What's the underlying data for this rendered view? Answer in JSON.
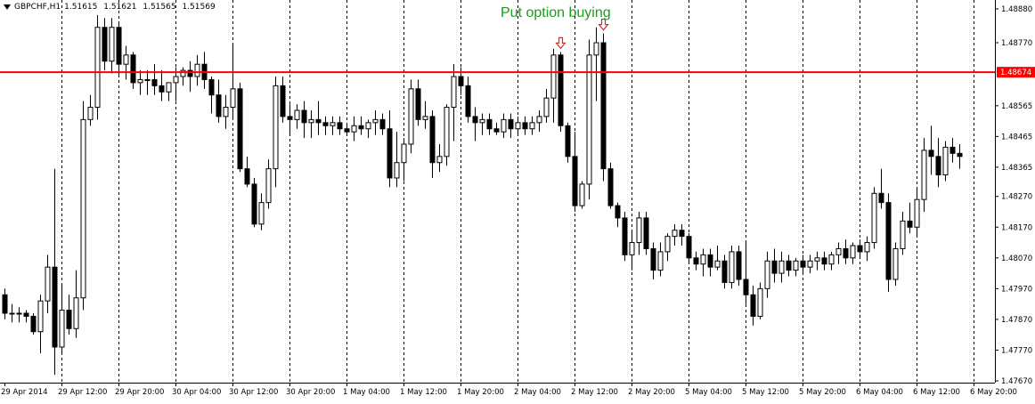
{
  "symbol": "GBPCHF,H1",
  "ohlc": [
    "1.51615",
    "1.51621",
    "1.51565",
    "1.51569"
  ],
  "annotation": "Put option buying",
  "colors": {
    "background": "#ffffff",
    "bull_body": "#ffffff",
    "bear_body": "#000000",
    "wick": "#000000",
    "grid": "#000000",
    "level_line": "#ff0000",
    "level_label_bg": "#ff0000",
    "level_label_text": "#ffffff",
    "annotation": "#1f9a1f",
    "arrow": "#d32f2f"
  },
  "chart_data": {
    "type": "candlestick",
    "timeframe": "H1",
    "grid": "vertical dotted lines",
    "ylim": [
      1.4767,
      1.4888
    ],
    "y_ticks": [
      "1.48880",
      "1.48770",
      "1.48565",
      "1.48465",
      "1.48365",
      "1.48270",
      "1.48170",
      "1.48070",
      "1.47970",
      "1.47870",
      "1.47770",
      "1.47670"
    ],
    "x_labels": [
      "29 Apr 2014",
      "29 Apr 12:00",
      "29 Apr 20:00",
      "30 Apr 04:00",
      "30 Apr 12:00",
      "30 Apr 20:00",
      "1 May 04:00",
      "1 May 12:00",
      "1 May 20:00",
      "2 May 04:00",
      "2 May 12:00",
      "2 May 20:00",
      "5 May 04:00",
      "5 May 12:00",
      "5 May 20:00",
      "6 May 04:00",
      "6 May 12:00",
      "6 May 20:00"
    ],
    "label_every_bars": 8,
    "horizontal_level": {
      "value": 1.48674,
      "label": "1.48674"
    },
    "signal_arrows": [
      {
        "bar": 78,
        "marker": "down-arrow"
      },
      {
        "bar": 84,
        "marker": "down-arrow"
      }
    ],
    "candles": [
      [
        1.4795,
        1.4797,
        1.4787,
        1.4789
      ],
      [
        1.4789,
        1.4792,
        1.4786,
        1.4789
      ],
      [
        1.4789,
        1.4791,
        1.4786,
        1.4789
      ],
      [
        1.4789,
        1.479,
        1.4786,
        1.4788
      ],
      [
        1.4788,
        1.4789,
        1.4782,
        1.4783
      ],
      [
        1.4783,
        1.4795,
        1.4776,
        1.4793
      ],
      [
        1.4793,
        1.4808,
        1.4789,
        1.4804
      ],
      [
        1.4804,
        1.4836,
        1.4769,
        1.4778
      ],
      [
        1.4778,
        1.4798,
        1.4776,
        1.479
      ],
      [
        1.479,
        1.4795,
        1.4782,
        1.4784
      ],
      [
        1.4784,
        1.4803,
        1.4781,
        1.4794
      ],
      [
        1.4794,
        1.4858,
        1.479,
        1.4852
      ],
      [
        1.4852,
        1.486,
        1.485,
        1.4856
      ],
      [
        1.4856,
        1.4886,
        1.4852,
        1.4882
      ],
      [
        1.4882,
        1.4885,
        1.4868,
        1.4871
      ],
      [
        1.4871,
        1.4885,
        1.4867,
        1.4882
      ],
      [
        1.4882,
        1.4884,
        1.4866,
        1.487
      ],
      [
        1.487,
        1.4876,
        1.4865,
        1.4873
      ],
      [
        1.4873,
        1.4874,
        1.4862,
        1.4864
      ],
      [
        1.4864,
        1.4868,
        1.486,
        1.4865
      ],
      [
        1.4865,
        1.4868,
        1.486,
        1.4865
      ],
      [
        1.4865,
        1.487,
        1.486,
        1.4863
      ],
      [
        1.4863,
        1.4868,
        1.4858,
        1.4861
      ],
      [
        1.4861,
        1.4864,
        1.4858,
        1.4864
      ],
      [
        1.4864,
        1.4869,
        1.4858,
        1.4866
      ],
      [
        1.4866,
        1.4869,
        1.4863,
        1.4868
      ],
      [
        1.4868,
        1.4871,
        1.4861,
        1.4866
      ],
      [
        1.4866,
        1.4873,
        1.4863,
        1.487
      ],
      [
        1.487,
        1.4874,
        1.4862,
        1.4865
      ],
      [
        1.4865,
        1.4866,
        1.4854,
        1.486
      ],
      [
        1.486,
        1.4865,
        1.4851,
        1.4853
      ],
      [
        1.4853,
        1.486,
        1.4849,
        1.4856
      ],
      [
        1.4856,
        1.4877,
        1.4852,
        1.4862
      ],
      [
        1.4862,
        1.4864,
        1.4835,
        1.4836
      ],
      [
        1.4836,
        1.484,
        1.483,
        1.4831
      ],
      [
        1.4831,
        1.4833,
        1.4817,
        1.4818
      ],
      [
        1.4818,
        1.4828,
        1.4816,
        1.4825
      ],
      [
        1.4825,
        1.4839,
        1.4823,
        1.4836
      ],
      [
        1.4836,
        1.4866,
        1.483,
        1.4863
      ],
      [
        1.4863,
        1.4866,
        1.4851,
        1.4853
      ],
      [
        1.4853,
        1.4857,
        1.4847,
        1.4852
      ],
      [
        1.4852,
        1.4857,
        1.4849,
        1.4855
      ],
      [
        1.4855,
        1.4858,
        1.4846,
        1.4851
      ],
      [
        1.4851,
        1.4855,
        1.4846,
        1.4852
      ],
      [
        1.4852,
        1.4858,
        1.4847,
        1.4851
      ],
      [
        1.4851,
        1.4853,
        1.4847,
        1.485
      ],
      [
        1.485,
        1.4853,
        1.4847,
        1.4851
      ],
      [
        1.4851,
        1.4853,
        1.4847,
        1.4849
      ],
      [
        1.4849,
        1.4851,
        1.4847,
        1.4848
      ],
      [
        1.4848,
        1.4853,
        1.4845,
        1.485
      ],
      [
        1.485,
        1.4853,
        1.4847,
        1.4849
      ],
      [
        1.4849,
        1.4852,
        1.4846,
        1.4851
      ],
      [
        1.4851,
        1.4855,
        1.4847,
        1.4852
      ],
      [
        1.4852,
        1.4854,
        1.4847,
        1.4849
      ],
      [
        1.4849,
        1.4855,
        1.483,
        1.4833
      ],
      [
        1.4833,
        1.4848,
        1.483,
        1.4838
      ],
      [
        1.4838,
        1.4846,
        1.4832,
        1.4844
      ],
      [
        1.4844,
        1.4865,
        1.4841,
        1.4862
      ],
      [
        1.4862,
        1.4865,
        1.485,
        1.4852
      ],
      [
        1.4852,
        1.4858,
        1.4849,
        1.4853
      ],
      [
        1.4853,
        1.4855,
        1.4833,
        1.4838
      ],
      [
        1.4838,
        1.4844,
        1.4835,
        1.484
      ],
      [
        1.484,
        1.4857,
        1.4837,
        1.4856
      ],
      [
        1.4856,
        1.487,
        1.4845,
        1.4866
      ],
      [
        1.4866,
        1.4869,
        1.486,
        1.4863
      ],
      [
        1.4863,
        1.4866,
        1.4851,
        1.4853
      ],
      [
        1.4853,
        1.4856,
        1.4845,
        1.4851
      ],
      [
        1.4851,
        1.4854,
        1.4847,
        1.4852
      ],
      [
        1.4852,
        1.4854,
        1.4847,
        1.4849
      ],
      [
        1.4849,
        1.4851,
        1.4847,
        1.4848
      ],
      [
        1.4848,
        1.4854,
        1.4846,
        1.4852
      ],
      [
        1.4852,
        1.4854,
        1.4846,
        1.4849
      ],
      [
        1.4849,
        1.4853,
        1.4847,
        1.4851
      ],
      [
        1.4851,
        1.4853,
        1.4847,
        1.4849
      ],
      [
        1.4849,
        1.4853,
        1.4847,
        1.4851
      ],
      [
        1.4851,
        1.4855,
        1.4848,
        1.4853
      ],
      [
        1.4853,
        1.4862,
        1.4851,
        1.4859
      ],
      [
        1.4859,
        1.4875,
        1.4851,
        1.4873
      ],
      [
        1.4873,
        1.4874,
        1.4848,
        1.485
      ],
      [
        1.485,
        1.4851,
        1.4838,
        1.484
      ],
      [
        1.484,
        1.4848,
        1.4822,
        1.4824
      ],
      [
        1.4824,
        1.4832,
        1.4823,
        1.4831
      ],
      [
        1.4831,
        1.4878,
        1.4826,
        1.4873
      ],
      [
        1.4873,
        1.4882,
        1.4858,
        1.4877
      ],
      [
        1.4877,
        1.488,
        1.4832,
        1.4836
      ],
      [
        1.4836,
        1.4838,
        1.4823,
        1.4824
      ],
      [
        1.4824,
        1.4825,
        1.4817,
        1.482
      ],
      [
        1.482,
        1.4822,
        1.4806,
        1.4808
      ],
      [
        1.4808,
        1.4816,
        1.4803,
        1.4812
      ],
      [
        1.4812,
        1.4822,
        1.4808,
        1.482
      ],
      [
        1.482,
        1.4822,
        1.4808,
        1.481
      ],
      [
        1.481,
        1.4812,
        1.48,
        1.4803
      ],
      [
        1.4803,
        1.4812,
        1.4801,
        1.4809
      ],
      [
        1.4809,
        1.4815,
        1.4806,
        1.4814
      ],
      [
        1.4814,
        1.4818,
        1.4811,
        1.4816
      ],
      [
        1.4816,
        1.4818,
        1.4811,
        1.4814
      ],
      [
        1.4814,
        1.4815,
        1.4805,
        1.4807
      ],
      [
        1.4807,
        1.4809,
        1.4803,
        1.4805
      ],
      [
        1.4805,
        1.481,
        1.4801,
        1.4808
      ],
      [
        1.4808,
        1.481,
        1.4801,
        1.4804
      ],
      [
        1.4804,
        1.4811,
        1.4803,
        1.4806
      ],
      [
        1.4806,
        1.4808,
        1.4797,
        1.4799
      ],
      [
        1.4799,
        1.4811,
        1.4797,
        1.4809
      ],
      [
        1.4809,
        1.4811,
        1.4798,
        1.48
      ],
      [
        1.48,
        1.4812,
        1.4792,
        1.4795
      ],
      [
        1.4795,
        1.4798,
        1.4785,
        1.4788
      ],
      [
        1.4788,
        1.4799,
        1.4787,
        1.4797
      ],
      [
        1.4797,
        1.4809,
        1.4794,
        1.4806
      ],
      [
        1.4806,
        1.481,
        1.4799,
        1.4802
      ],
      [
        1.4802,
        1.4809,
        1.4799,
        1.4806
      ],
      [
        1.4806,
        1.4808,
        1.4801,
        1.4803
      ],
      [
        1.4803,
        1.4807,
        1.4801,
        1.4806
      ],
      [
        1.4806,
        1.4808,
        1.4802,
        1.4804
      ],
      [
        1.4804,
        1.4808,
        1.4802,
        1.4806
      ],
      [
        1.4806,
        1.4809,
        1.4803,
        1.4807
      ],
      [
        1.4807,
        1.4809,
        1.4803,
        1.4805
      ],
      [
        1.4805,
        1.4809,
        1.4803,
        1.4808
      ],
      [
        1.4808,
        1.4812,
        1.4805,
        1.481
      ],
      [
        1.481,
        1.4813,
        1.4805,
        1.4807
      ],
      [
        1.4807,
        1.4812,
        1.4805,
        1.4811
      ],
      [
        1.4811,
        1.4813,
        1.4807,
        1.4809
      ],
      [
        1.4809,
        1.4814,
        1.4806,
        1.4812
      ],
      [
        1.4812,
        1.483,
        1.481,
        1.4828
      ],
      [
        1.4828,
        1.4836,
        1.4823,
        1.4825
      ],
      [
        1.4825,
        1.4828,
        1.4796,
        1.48
      ],
      [
        1.48,
        1.4812,
        1.4798,
        1.481
      ],
      [
        1.481,
        1.4822,
        1.4808,
        1.4819
      ],
      [
        1.4819,
        1.4825,
        1.4815,
        1.4817
      ],
      [
        1.4817,
        1.483,
        1.4814,
        1.4826
      ],
      [
        1.4826,
        1.4846,
        1.4822,
        1.4842
      ],
      [
        1.4842,
        1.485,
        1.4834,
        1.484
      ],
      [
        1.484,
        1.4846,
        1.483,
        1.4834
      ],
      [
        1.4834,
        1.4845,
        1.4832,
        1.4843
      ],
      [
        1.4843,
        1.4846,
        1.4838,
        1.4841
      ],
      [
        1.4841,
        1.4844,
        1.4836,
        1.484
      ]
    ]
  }
}
